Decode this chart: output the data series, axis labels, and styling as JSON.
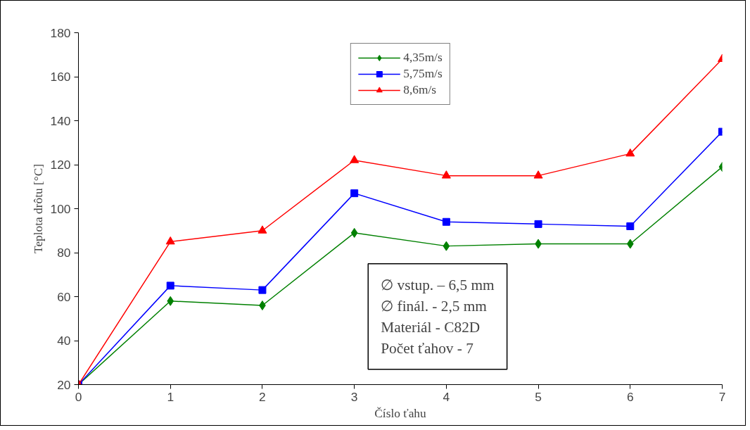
{
  "chart_data": {
    "type": "line",
    "xlabel": "Číslo ťahu",
    "ylabel": "Teplota drôtu [°C]",
    "x": [
      0,
      1,
      2,
      3,
      4,
      5,
      6,
      7
    ],
    "series": [
      {
        "name": "4,35m/s",
        "color": "#008000",
        "marker": "diamond",
        "values": [
          20,
          58,
          56,
          89,
          83,
          84,
          84,
          119
        ]
      },
      {
        "name": "5,75m/s",
        "color": "#0000ff",
        "marker": "square",
        "values": [
          20,
          65,
          63,
          107,
          94,
          93,
          92,
          135
        ]
      },
      {
        "name": "8,6m/s",
        "color": "#ff0000",
        "marker": "triangle",
        "values": [
          20,
          85,
          90,
          122,
          115,
          115,
          125,
          168
        ]
      }
    ],
    "xlim": [
      0,
      7
    ],
    "xticks": [
      0,
      1,
      2,
      3,
      4,
      5,
      6,
      7
    ],
    "ylim": [
      20,
      180
    ],
    "yticks": [
      20,
      40,
      60,
      80,
      100,
      120,
      140,
      160,
      180
    ],
    "grid": false,
    "legend": "top",
    "annotations": [
      "∅ vstup. – 6,5 mm",
      "∅ finál. - 2,5 mm",
      "Materiál - C82D",
      "Počet ťahov - 7"
    ]
  }
}
